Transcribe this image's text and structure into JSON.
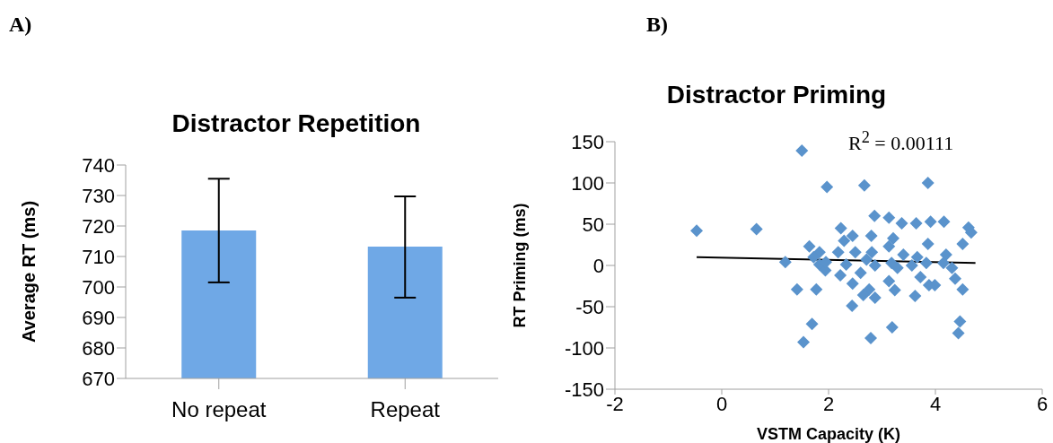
{
  "chart_data": [
    {
      "type": "bar",
      "title": "Distractor Repetition",
      "ylabel": "Average RT (ms)",
      "categories": [
        "No repeat",
        "Repeat"
      ],
      "values": [
        718.5,
        713.2
      ],
      "errors": [
        [
          701.5,
          735.5
        ],
        [
          696.5,
          729.7
        ]
      ],
      "color": "#6fa8e6",
      "ylim": [
        670,
        740
      ],
      "yticks": [
        670,
        680,
        690,
        700,
        710,
        720,
        730,
        740
      ],
      "annotations": [
        "A)"
      ]
    },
    {
      "type": "scatter",
      "title": "Distractor Priming",
      "xlabel": "VSTM Capacity (K)",
      "ylabel": "RT Priming (ms)",
      "marker": "diamond",
      "xlim": [
        -2,
        6
      ],
      "xticks": [
        -2,
        0,
        2,
        4,
        6
      ],
      "ylim": [
        -150,
        150
      ],
      "yticks": [
        -150,
        -100,
        -50,
        0,
        50,
        100,
        150
      ],
      "annotations": [
        "B)",
        "R$^{2}$ = 0.00111"
      ],
      "series": [
        {
          "color": "#5a93cc",
          "x": [
            1.5,
            1.97,
            2.67,
            3.86,
            0.65,
            1.19,
            1.41,
            1.77,
            1.69,
            1.53,
            2.44,
            2.79,
            3.19,
            4.46,
            4.43,
            4.51,
            4.51,
            4.62,
            4.67,
            -0.47,
            2.86,
            3.13,
            3.37,
            3.64,
            3.91,
            4.16,
            2.8,
            2.23,
            3.21,
            3.86,
            1.64,
            1.83,
            1.94,
            2.18,
            2.29,
            2.45,
            2.5,
            2.33,
            2.22,
            2.45,
            2.6,
            2.71,
            2.81,
            2.76,
            2.87,
            2.65,
            3.13,
            3.18,
            3.13,
            3.24,
            3.4,
            3.56,
            3.62,
            3.72,
            3.83,
            3.88,
            3.99,
            4.2,
            4.31,
            4.37,
            4.15,
            2.87,
            1.83,
            1.72,
            1.95,
            3.29,
            3.66
          ],
          "values": [
            139,
            95,
            97,
            100,
            44,
            4,
            -29,
            -29,
            -71,
            -93,
            -49,
            -88,
            -75,
            -68,
            -82,
            -29,
            26,
            46,
            40,
            42,
            60,
            58,
            51,
            51,
            53,
            53,
            36,
            45,
            33,
            26,
            23,
            1,
            -6,
            16,
            30,
            36,
            16,
            1,
            -12,
            -22,
            -9,
            7,
            16,
            -29,
            -39,
            -36,
            23,
            3,
            -19,
            -30,
            13,
            0,
            -37,
            -14,
            3,
            -24,
            -24,
            13,
            -3,
            -16,
            3,
            0,
            16,
            10,
            4,
            -3,
            10
          ]
        },
        {
          "type": "line",
          "marker": "none",
          "color": "#000000",
          "x": [
            -0.47,
            4.75
          ],
          "values": [
            10,
            3
          ]
        }
      ]
    }
  ]
}
